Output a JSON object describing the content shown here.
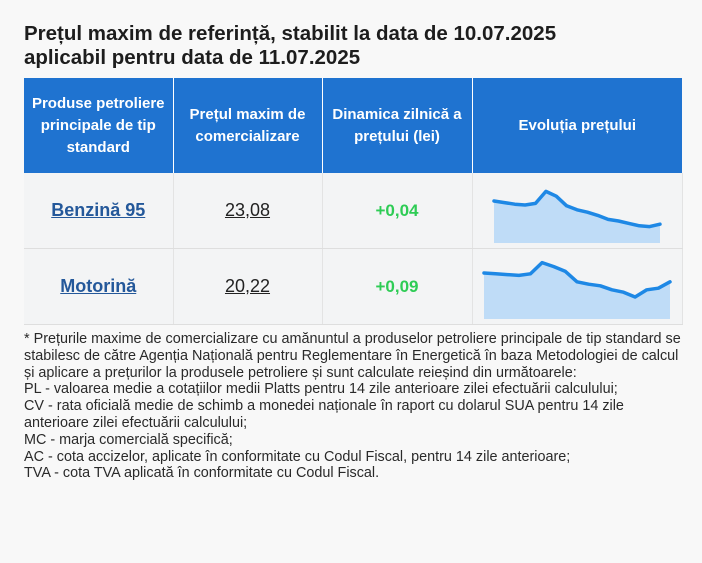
{
  "title_line1": "Prețul maxim de referință, stabilit la data de 10.07.2025",
  "title_line2": "aplicabil pentru data de 11.07.2025",
  "headers": [
    "Produse petroliere principale de tip standard",
    "Prețul maxim de comercializare",
    "Dinamica zilnică a prețului (lei)",
    "Evoluția prețului"
  ],
  "rows": [
    {
      "product": "Benzină 95",
      "price": "23,08",
      "delta": "+0,04",
      "trend": [
        40,
        38,
        36,
        35,
        37,
        52,
        46,
        34,
        29,
        26,
        22,
        17,
        15,
        12,
        9,
        8,
        11
      ]
    },
    {
      "product": "Motorină",
      "price": "20,22",
      "delta": "+0,09",
      "trend": [
        45,
        44,
        43,
        42,
        44,
        58,
        53,
        47,
        34,
        31,
        29,
        24,
        21,
        15,
        24,
        26,
        34
      ]
    }
  ],
  "notes": [
    "* Prețurile maxime de comercializare cu amănuntul a produselor petroliere principale de tip standard se stabilesc de către Agenția Națională pentru Reglementare în Energetică în baza Metodologiei de calcul și aplicare a prețurilor la produsele petroliere și sunt calculate reieșind din următoarele:",
    "PL - valoarea medie a cotațiilor medii Platts pentru 14 zile anterioare zilei efectuării calculului;",
    "CV - rata oficială medie de schimb a monedei naționale în raport cu dolarul SUA pentru 14 zile anterioare zilei efectuării calculului;",
    "MC - marja comercială specifică;",
    "AC - cota accizelor, aplicate în conformitate cu Codul Fiscal, pentru 14 zile anterioare;",
    "TVA - cota TVA aplicată în conformitate cu Codul Fiscal."
  ],
  "colors": {
    "header_bg": "#1f73d0",
    "line": "#1e88e5",
    "area": "#bfdcf7",
    "delta": "#2ecc55",
    "link": "#24589a"
  },
  "icons": []
}
